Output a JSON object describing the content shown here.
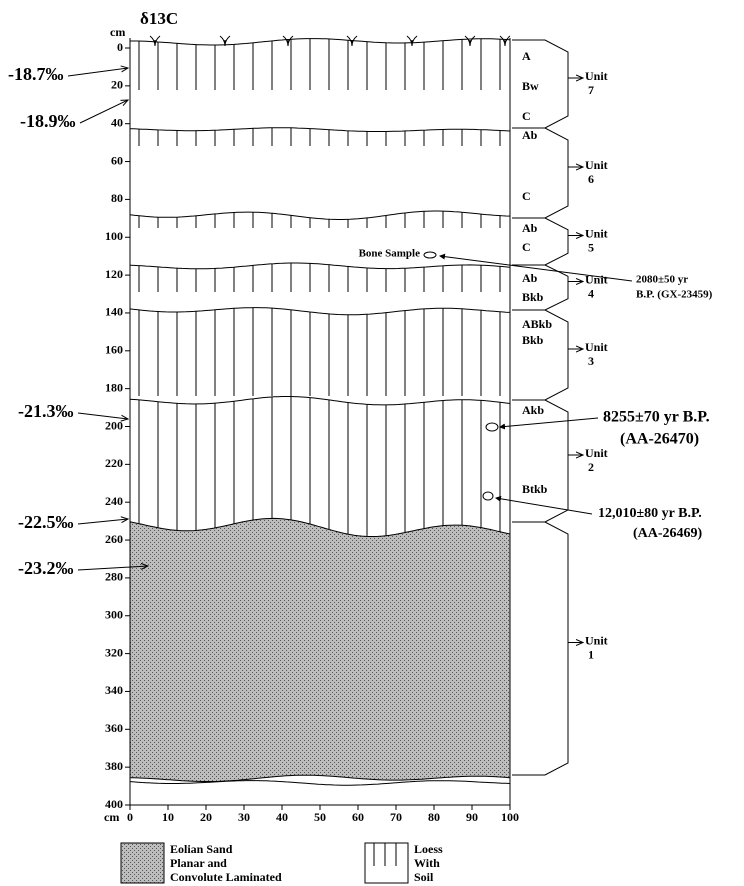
{
  "title": "δ13C",
  "depth_axis": {
    "label": "cm",
    "ticks": [
      0,
      20,
      40,
      60,
      80,
      100,
      120,
      140,
      160,
      180,
      200,
      220,
      240,
      260,
      280,
      300,
      320,
      340,
      360,
      380,
      400
    ]
  },
  "width_axis": {
    "label": "cm",
    "ticks": [
      0,
      10,
      20,
      30,
      40,
      50,
      60,
      70,
      80,
      90,
      100
    ]
  },
  "isotope_values": [
    "-18.7‰",
    "-18.9‰",
    "-21.3‰",
    "-22.5‰",
    "-23.2‰"
  ],
  "horizons": [
    "A",
    "Bw",
    "C",
    "Ab",
    "C",
    "Ab",
    "C",
    "Ab",
    "Bkb",
    "ABkb",
    "Bkb",
    "Akb",
    "Btkb"
  ],
  "units": [
    {
      "label": "Unit",
      "number": "7"
    },
    {
      "label": "Unit",
      "number": "6"
    },
    {
      "label": "Unit",
      "number": "5"
    },
    {
      "label": "Unit",
      "number": "4"
    },
    {
      "label": "Unit",
      "number": "3"
    },
    {
      "label": "Unit",
      "number": "2"
    },
    {
      "label": "Unit",
      "number": "1"
    }
  ],
  "bone_sample": "Bone Sample",
  "dates": [
    {
      "lines": [
        "2080±50 yr",
        "B.P. (GX-23459)"
      ]
    },
    {
      "lines": [
        "8255±70 yr B.P.",
        "(AA-26470)"
      ]
    },
    {
      "lines": [
        "12,010±80 yr B.P.",
        "(AA-26469)"
      ]
    }
  ],
  "legend": [
    {
      "lines": [
        "Eolian Sand",
        "Planar and",
        "Convolute Laminated"
      ]
    },
    {
      "lines": [
        "Loess",
        "With",
        "Soil"
      ]
    }
  ]
}
